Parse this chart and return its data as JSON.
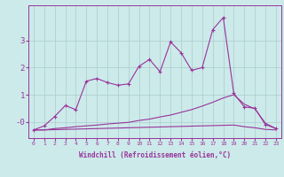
{
  "xlabel": "Windchill (Refroidissement éolien,°C)",
  "background_color": "#cceaea",
  "grid_color": "#aacccc",
  "line_color": "#993399",
  "x_values": [
    0,
    1,
    2,
    3,
    4,
    5,
    6,
    7,
    8,
    9,
    10,
    11,
    12,
    13,
    14,
    15,
    16,
    17,
    18,
    19,
    20,
    21,
    22,
    23
  ],
  "line1_y": [
    -0.3,
    -0.15,
    0.2,
    0.6,
    0.45,
    1.5,
    1.6,
    1.45,
    1.35,
    1.4,
    2.05,
    2.3,
    1.85,
    2.95,
    2.55,
    1.9,
    2.0,
    3.4,
    3.85,
    1.05,
    0.55,
    0.5,
    -0.1,
    -0.25
  ],
  "line2_y": [
    -0.3,
    -0.3,
    -0.25,
    -0.22,
    -0.18,
    -0.15,
    -0.12,
    -0.08,
    -0.05,
    -0.02,
    0.05,
    0.1,
    0.18,
    0.25,
    0.35,
    0.45,
    0.58,
    0.72,
    0.88,
    1.0,
    0.65,
    0.48,
    -0.05,
    -0.25
  ],
  "line3_y": [
    -0.3,
    -0.3,
    -0.29,
    -0.28,
    -0.27,
    -0.26,
    -0.25,
    -0.24,
    -0.23,
    -0.22,
    -0.21,
    -0.2,
    -0.19,
    -0.18,
    -0.17,
    -0.16,
    -0.15,
    -0.14,
    -0.13,
    -0.12,
    -0.18,
    -0.22,
    -0.28,
    -0.3
  ],
  "ylim": [
    -0.6,
    4.3
  ],
  "xlim": [
    -0.5,
    23.5
  ],
  "yticks": [
    0,
    1,
    2,
    3
  ],
  "ytick_labels": [
    "-0",
    "1",
    "2",
    "3"
  ],
  "xticks": [
    0,
    1,
    2,
    3,
    4,
    5,
    6,
    7,
    8,
    9,
    10,
    11,
    12,
    13,
    14,
    15,
    16,
    17,
    18,
    19,
    20,
    21,
    22,
    23
  ],
  "marker": "+",
  "marker_size": 3,
  "line_width": 0.8,
  "xlabel_fontsize": 5.5,
  "xtick_fontsize": 4.5,
  "ytick_fontsize": 6.5
}
